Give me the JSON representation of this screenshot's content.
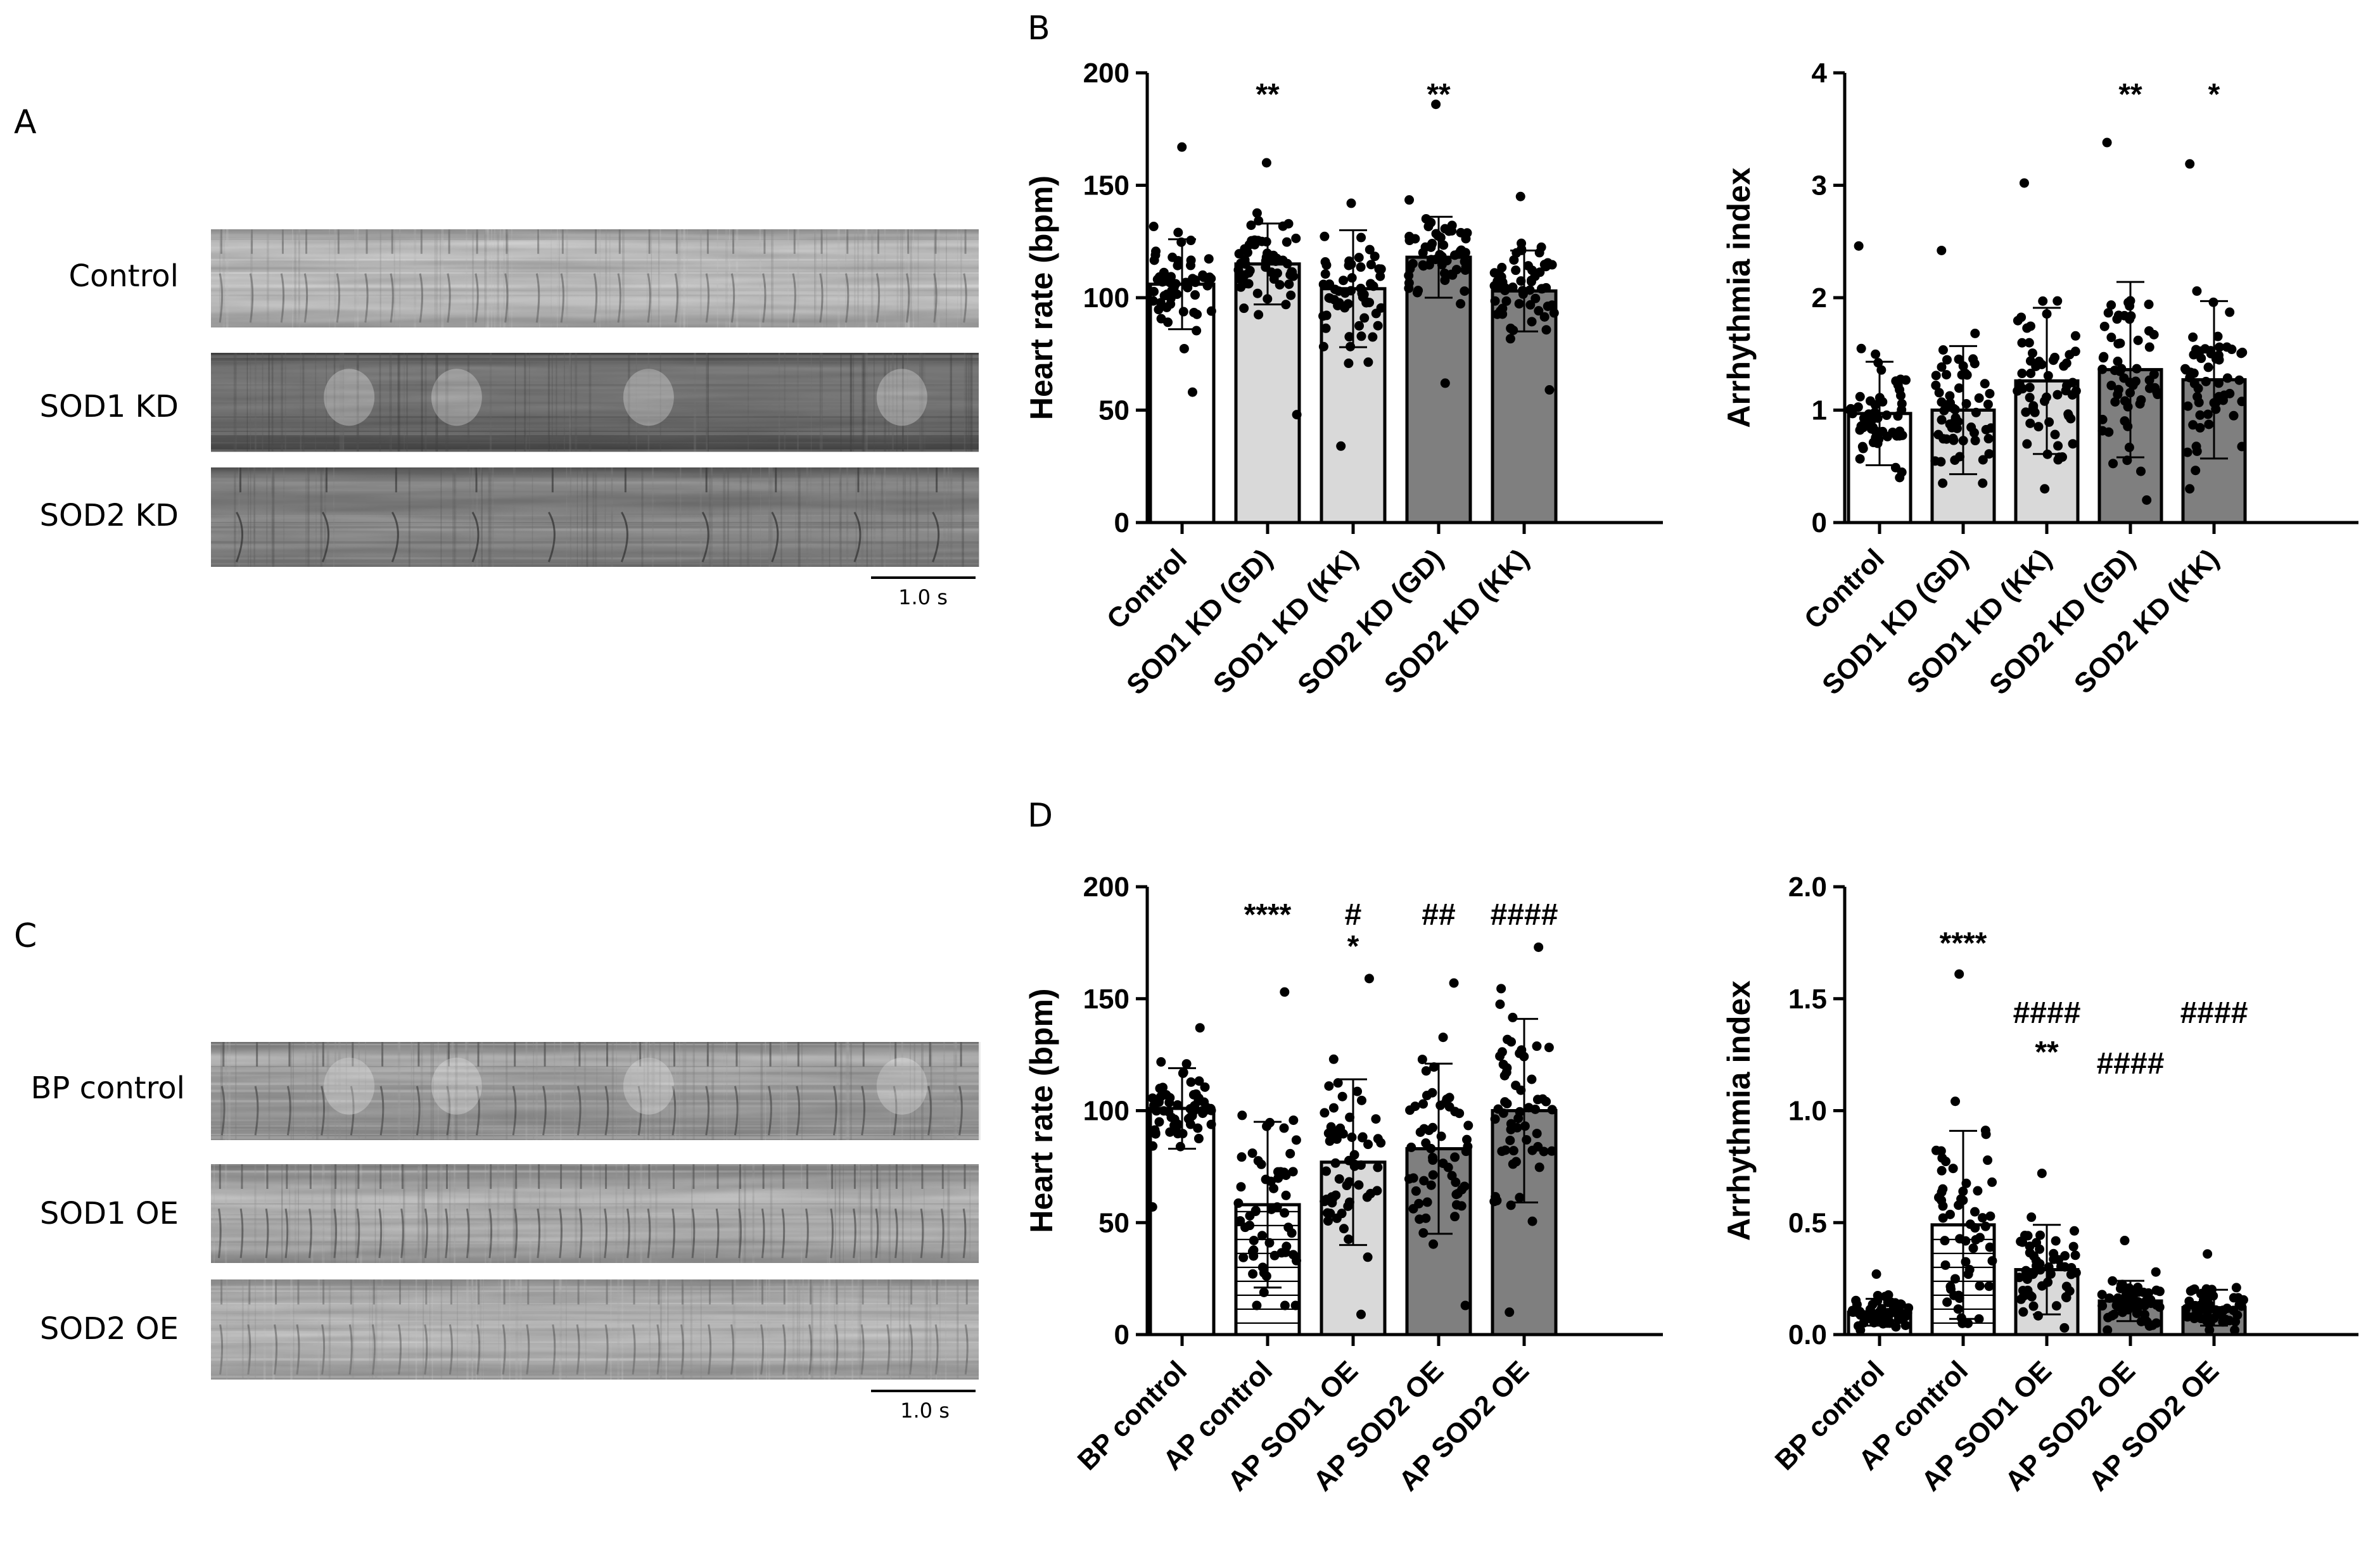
{
  "panels": {
    "A": {
      "letter": "A",
      "rows": [
        "Control",
        "SOD1 KD",
        "SOD2 KD"
      ],
      "scale_bar": "1.0 s"
    },
    "B": {
      "letter": "B"
    },
    "C": {
      "letter": "C",
      "rows": [
        "BP control",
        "SOD1 OE",
        "SOD2 OE"
      ],
      "scale_bar": "1.0 s"
    },
    "D": {
      "letter": "D"
    }
  },
  "colors": {
    "white": "#ffffff",
    "light_gray": "#d9d9d9",
    "dark_gray": "#7f7f7f",
    "black": "#000000"
  },
  "chart_data": [
    {
      "id": "B-heart-rate",
      "type": "bar",
      "ylabel": "Heart rate (bpm)",
      "ylim": [
        0,
        200
      ],
      "yticks": [
        0,
        50,
        100,
        150,
        200
      ],
      "categories": [
        "Control",
        "SOD1 KD (GD)",
        "SOD1 KD (KK)",
        "SOD2 KD (GD)",
        "SOD2 KD (KK)"
      ],
      "values": [
        106,
        115,
        104,
        118,
        103
      ],
      "sd": [
        20,
        18,
        26,
        18,
        18
      ],
      "fills": [
        "white",
        "light_gray",
        "light_gray",
        "dark_gray",
        "dark_gray"
      ],
      "hatch": [
        false,
        false,
        false,
        false,
        false
      ],
      "significance": [
        [],
        [
          "**"
        ],
        [],
        [
          "**"
        ],
        []
      ],
      "point_range": [
        [
          58,
          167
        ],
        [
          48,
          160
        ],
        [
          34,
          142
        ],
        [
          62,
          186
        ],
        [
          59,
          145
        ]
      ]
    },
    {
      "id": "B-arrhythmia",
      "type": "bar",
      "ylabel": "Arrhythmia index",
      "ylim": [
        0,
        4
      ],
      "yticks": [
        0,
        1,
        2,
        3,
        4
      ],
      "categories": [
        "Control",
        "SOD1 KD (GD)",
        "SOD1 KD (KK)",
        "SOD2 KD (GD)",
        "SOD2 KD (KK)"
      ],
      "values": [
        0.97,
        1.0,
        1.26,
        1.36,
        1.27
      ],
      "sd": [
        0.46,
        0.57,
        0.65,
        0.78,
        0.7
      ],
      "fills": [
        "white",
        "light_gray",
        "light_gray",
        "dark_gray",
        "dark_gray"
      ],
      "hatch": [
        false,
        false,
        false,
        false,
        false
      ],
      "significance": [
        [],
        [],
        [],
        [
          "**"
        ],
        [
          "*"
        ]
      ],
      "point_range": [
        [
          0.4,
          2.46
        ],
        [
          0.35,
          2.42
        ],
        [
          0.3,
          3.02
        ],
        [
          0.2,
          3.38
        ],
        [
          0.3,
          3.19
        ]
      ]
    },
    {
      "id": "D-heart-rate",
      "type": "bar",
      "ylabel": "Heart rate (bpm)",
      "ylim": [
        0,
        200
      ],
      "yticks": [
        0,
        50,
        100,
        150,
        200
      ],
      "categories": [
        "BP control",
        "AP control",
        "AP SOD1 OE",
        "AP SOD2 OE",
        "AP SOD2 OE"
      ],
      "values": [
        101,
        58,
        77,
        83,
        100
      ],
      "sd": [
        18,
        37,
        37,
        38,
        41
      ],
      "fills": [
        "white",
        "white",
        "light_gray",
        "dark_gray",
        "dark_gray"
      ],
      "hatch": [
        false,
        true,
        false,
        false,
        false
      ],
      "significance": [
        [],
        [
          "****"
        ],
        [
          "#",
          "*"
        ],
        [
          "##"
        ],
        [
          "####"
        ]
      ],
      "point_range": [
        [
          57,
          137
        ],
        [
          13,
          153
        ],
        [
          9,
          159
        ],
        [
          13,
          157
        ],
        [
          10,
          173
        ]
      ]
    },
    {
      "id": "D-arrhythmia",
      "type": "bar",
      "ylabel": "Arrhythmia index",
      "ylim": [
        0,
        2.0
      ],
      "yticks": [
        0.0,
        0.5,
        1.0,
        1.5,
        2.0
      ],
      "categories": [
        "BP control",
        "AP control",
        "AP SOD1 OE",
        "AP SOD2 OE",
        "AP SOD2 OE"
      ],
      "values": [
        0.1,
        0.49,
        0.29,
        0.15,
        0.12
      ],
      "sd": [
        0.06,
        0.42,
        0.2,
        0.09,
        0.08
      ],
      "fills": [
        "white",
        "white",
        "light_gray",
        "dark_gray",
        "dark_gray"
      ],
      "hatch": [
        false,
        true,
        false,
        false,
        false
      ],
      "significance": [
        [],
        [
          "****"
        ],
        [
          "####",
          "**"
        ],
        [
          "####"
        ],
        [
          "####"
        ]
      ],
      "point_range": [
        [
          0.02,
          0.27
        ],
        [
          0.05,
          1.61
        ],
        [
          0.03,
          0.72
        ],
        [
          0.02,
          0.42
        ],
        [
          0.02,
          0.36
        ]
      ]
    }
  ]
}
